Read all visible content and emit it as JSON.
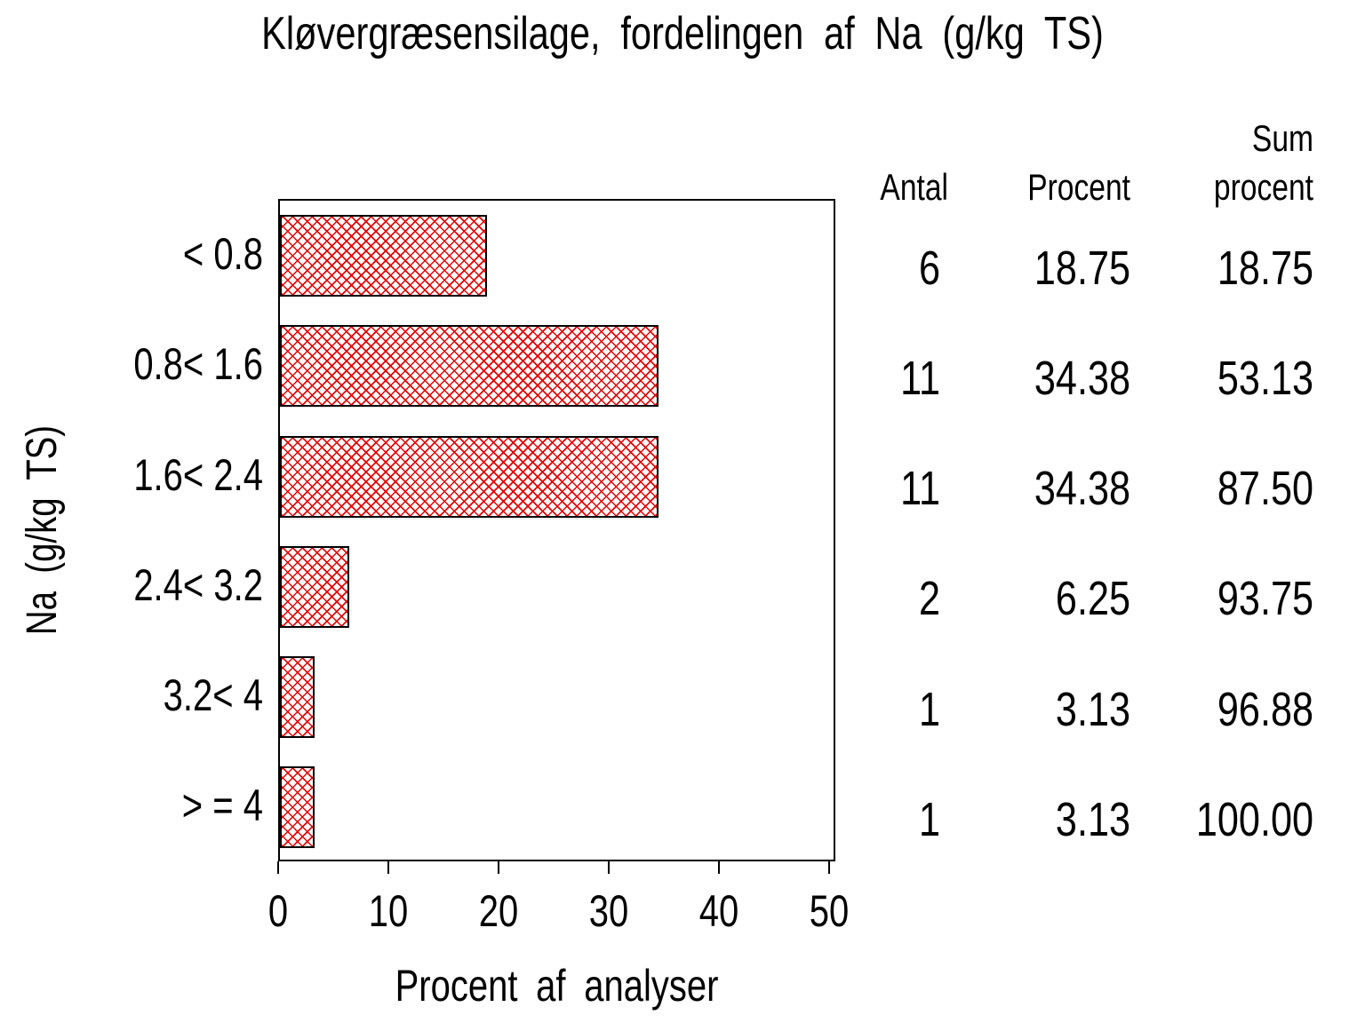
{
  "chart_data": {
    "type": "bar",
    "orientation": "horizontal",
    "title": "Kløvergræsensilage, fordelingen af Na (g/kg TS)",
    "xlabel": "Procent af analyser",
    "ylabel": "Na (g/kg TS)",
    "xlim": [
      0,
      50
    ],
    "xticks": [
      "0",
      "10",
      "20",
      "30",
      "40",
      "50"
    ],
    "grid": false,
    "legend": "none",
    "categories": [
      "< 0.8",
      "0.8< 1.6",
      "1.6< 2.4",
      "2.4< 3.2",
      "3.2< 4",
      "> = 4"
    ],
    "values": [
      18.75,
      34.38,
      34.38,
      6.25,
      3.13,
      3.13
    ],
    "colors": {
      "hatch": "#e60000",
      "bar_border": "#000000",
      "axis": "#000000",
      "background": "#ffffff"
    },
    "table": {
      "col1_header": "Antal",
      "col2_header": "Procent",
      "col3_header_line1": "Sum",
      "col3_header_line2": "procent",
      "rows": [
        {
          "antal": "6",
          "procent": "18.75",
          "sum_procent": "18.75"
        },
        {
          "antal": "11",
          "procent": "34.38",
          "sum_procent": "53.13"
        },
        {
          "antal": "11",
          "procent": "34.38",
          "sum_procent": "87.50"
        },
        {
          "antal": "2",
          "procent": "6.25",
          "sum_procent": "93.75"
        },
        {
          "antal": "1",
          "procent": "3.13",
          "sum_procent": "96.88"
        },
        {
          "antal": "1",
          "procent": "3.13",
          "sum_procent": "100.00"
        }
      ]
    }
  }
}
